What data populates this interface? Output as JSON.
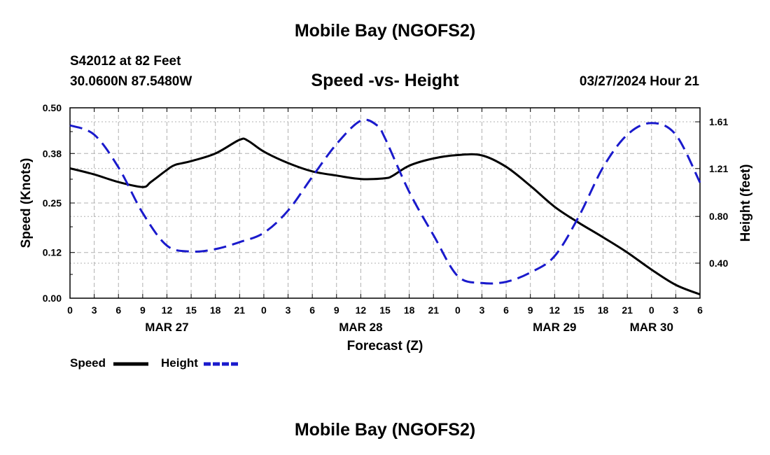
{
  "page": {
    "title": "Mobile Bay (NGOFS2)",
    "bottom_title": "Mobile Bay (NGOFS2)",
    "station": "S42012 at 82 Feet",
    "coordinates": "30.0600N  87.5480W",
    "subtitle": "Speed -vs- Height",
    "datetime": "03/27/2024 Hour 21"
  },
  "colors": {
    "speed": "#000000",
    "height": "#1a1acc",
    "grid": "#b0b0b0"
  },
  "chart_data": {
    "type": "line",
    "title": "Speed -vs- Height",
    "xlabel": "Forecast (Z)",
    "ylabel": "Speed (Knots)",
    "ylabel_right": "Height (feet)",
    "x_range_hours": [
      0,
      78
    ],
    "ylim": [
      0,
      0.5
    ],
    "ylim_right": [
      0.1,
      1.73
    ],
    "y_ticks": [
      "0.00",
      "0.12",
      "0.25",
      "0.38",
      "0.50"
    ],
    "y_right_ticks": [
      "0.40",
      "0.80",
      "1.21",
      "1.61"
    ],
    "x_tick_labels": [
      "0",
      "3",
      "6",
      "9",
      "12",
      "15",
      "18",
      "21",
      "0",
      "3",
      "6",
      "9",
      "12",
      "15",
      "18",
      "21",
      "0",
      "3",
      "6",
      "9",
      "12",
      "15",
      "18",
      "21",
      "0",
      "3",
      "6"
    ],
    "date_labels": [
      {
        "label": "MAR 27",
        "hour": 12
      },
      {
        "label": "MAR 28",
        "hour": 36
      },
      {
        "label": "MAR 29",
        "hour": 60
      },
      {
        "label": "MAR 30",
        "hour": 72
      }
    ],
    "legend": [
      {
        "name": "Speed",
        "style": "solid"
      },
      {
        "name": "Height",
        "style": "dashed"
      }
    ],
    "series": [
      {
        "name": "Speed",
        "axis": "left",
        "style": "solid",
        "x": [
          0,
          3,
          6,
          9,
          10,
          12,
          13,
          15,
          18,
          21,
          22,
          24,
          27,
          30,
          33,
          36,
          39,
          40,
          42,
          45,
          48,
          51,
          54,
          57,
          60,
          63,
          66,
          69,
          72,
          75,
          78
        ],
        "values": [
          0.341,
          0.325,
          0.305,
          0.292,
          0.305,
          0.337,
          0.35,
          0.36,
          0.38,
          0.416,
          0.414,
          0.385,
          0.355,
          0.333,
          0.322,
          0.313,
          0.315,
          0.322,
          0.348,
          0.367,
          0.376,
          0.375,
          0.345,
          0.295,
          0.24,
          0.198,
          0.16,
          0.12,
          0.075,
          0.035,
          0.01
        ]
      },
      {
        "name": "Height",
        "axis": "right",
        "style": "dashed",
        "x": [
          0,
          3,
          6,
          9,
          12,
          15,
          18,
          21,
          24,
          27,
          30,
          33,
          36,
          38,
          39,
          42,
          45,
          48,
          51,
          54,
          57,
          60,
          63,
          66,
          69,
          72,
          75,
          78
        ],
        "values": [
          1.58,
          1.5,
          1.22,
          0.83,
          0.55,
          0.5,
          0.52,
          0.58,
          0.66,
          0.85,
          1.14,
          1.42,
          1.62,
          1.58,
          1.47,
          1.01,
          0.64,
          0.29,
          0.23,
          0.24,
          0.32,
          0.46,
          0.8,
          1.22,
          1.5,
          1.6,
          1.5,
          1.09
        ]
      }
    ]
  }
}
